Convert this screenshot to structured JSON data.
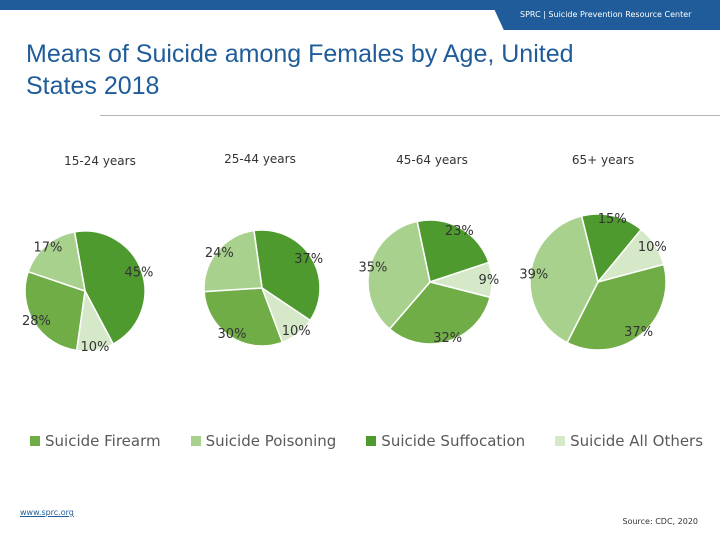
{
  "header": {
    "text": "SPRC | Suicide Prevention Resource Center"
  },
  "title": "Means of Suicide among Females by Age, United States 2018",
  "footer": {
    "link": "www.sprc.org",
    "source": "Source: CDC, 2020"
  },
  "chart_data": {
    "type": "pie",
    "series_names": [
      "Suicide Firearm",
      "Suicide Poisoning",
      "Suicide Suffocation",
      "Suicide All Others"
    ],
    "colors": [
      "#70ad47",
      "#a9d18e",
      "#4f9a2f",
      "#d5e8c8"
    ],
    "legend_position": "bottom",
    "panels": [
      {
        "title": "15-24 years",
        "slices": [
          {
            "series": "Suicide Firearm",
            "value": 28
          },
          {
            "series": "Suicide Poisoning",
            "value": 17
          },
          {
            "series": "Suicide Suffocation",
            "value": 45
          },
          {
            "series": "Suicide All Others",
            "value": 10
          }
        ]
      },
      {
        "title": "25-44 years",
        "slices": [
          {
            "series": "Suicide Firearm",
            "value": 30
          },
          {
            "series": "Suicide Poisoning",
            "value": 24
          },
          {
            "series": "Suicide Suffocation",
            "value": 37
          },
          {
            "series": "Suicide All Others",
            "value": 10
          }
        ]
      },
      {
        "title": "45-64 years",
        "slices": [
          {
            "series": "Suicide Firearm",
            "value": 32
          },
          {
            "series": "Suicide Poisoning",
            "value": 35
          },
          {
            "series": "Suicide Suffocation",
            "value": 23
          },
          {
            "series": "Suicide All Others",
            "value": 9
          }
        ]
      },
      {
        "title": "65+ years",
        "slices": [
          {
            "series": "Suicide Firearm",
            "value": 37
          },
          {
            "series": "Suicide Poisoning",
            "value": 39
          },
          {
            "series": "Suicide Suffocation",
            "value": 15
          },
          {
            "series": "Suicide All Others",
            "value": 10
          }
        ]
      }
    ]
  }
}
